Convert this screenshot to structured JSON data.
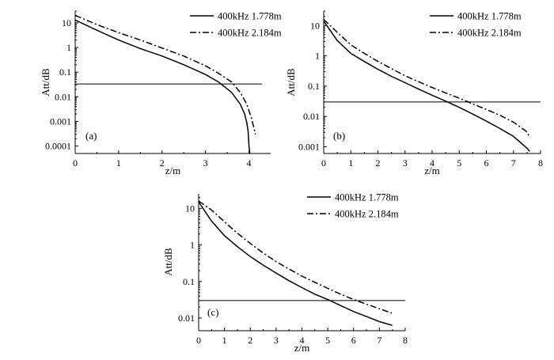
{
  "chart_data": [
    {
      "type": "line",
      "panel_label": "(a)",
      "xlabel": "z/m",
      "ylabel": "Att/dB",
      "xlim": [
        0,
        4.5
      ],
      "ylim": [
        5e-05,
        30
      ],
      "y_scale": "log",
      "x_ticks": [
        "0",
        "1",
        "2",
        "3",
        "4"
      ],
      "y_ticks": [
        "0.0001",
        "0.001",
        "0.01",
        "0.1",
        "1",
        "10"
      ],
      "legend_position": "top-right",
      "reference_line": {
        "y": 0.033,
        "x_range": [
          0,
          4.3
        ]
      },
      "series": [
        {
          "name": "400kHz 1.778m",
          "style": "solid",
          "x": [
            0,
            0.5,
            1.0,
            1.5,
            2.0,
            2.5,
            3.0,
            3.3,
            3.6,
            3.8,
            3.9,
            3.95,
            3.98,
            4.0,
            4.02
          ],
          "y": [
            13,
            5.0,
            2.0,
            0.9,
            0.45,
            0.2,
            0.08,
            0.04,
            0.015,
            0.005,
            0.002,
            0.0009,
            0.0004,
            0.0001,
            4e-05
          ]
        },
        {
          "name": "400kHz 2.184m",
          "style": "dashdot",
          "x": [
            0,
            0.5,
            1.0,
            1.5,
            2.0,
            2.5,
            3.0,
            3.3,
            3.6,
            3.8,
            3.95,
            4.05,
            4.1,
            4.15
          ],
          "y": [
            20,
            8.5,
            4.0,
            2.0,
            0.95,
            0.45,
            0.18,
            0.09,
            0.04,
            0.015,
            0.005,
            0.0015,
            0.0007,
            0.0003
          ]
        }
      ]
    },
    {
      "type": "line",
      "panel_label": "(b)",
      "xlabel": "z/m",
      "ylabel": "Att/dB",
      "xlim": [
        0,
        8
      ],
      "ylim": [
        0.0006,
        30
      ],
      "y_scale": "log",
      "x_ticks": [
        "0",
        "1",
        "2",
        "3",
        "4",
        "5",
        "6",
        "7",
        "8"
      ],
      "y_ticks": [
        "0.001",
        "0.01",
        "0.1",
        "1",
        "10"
      ],
      "legend_position": "top-right",
      "reference_line": {
        "y": 0.03,
        "x_range": [
          0,
          8
        ]
      },
      "series": [
        {
          "name": "400kHz 1.778m",
          "style": "solid",
          "x": [
            0,
            0.5,
            1,
            1.5,
            2,
            2.5,
            3,
            3.5,
            4,
            4.5,
            5,
            5.5,
            6,
            6.5,
            7,
            7.5,
            7.6
          ],
          "y": [
            14,
            3.2,
            1.2,
            0.65,
            0.36,
            0.21,
            0.13,
            0.08,
            0.05,
            0.032,
            0.02,
            0.012,
            0.007,
            0.004,
            0.0022,
            0.0009,
            0.0007
          ]
        },
        {
          "name": "400kHz 2.184m",
          "style": "dashdot",
          "x": [
            0,
            0.5,
            1,
            1.5,
            2,
            2.5,
            3,
            3.5,
            4,
            4.5,
            5,
            5.5,
            6,
            6.5,
            7,
            7.5,
            7.6
          ],
          "y": [
            16,
            6.0,
            2.3,
            1.2,
            0.65,
            0.38,
            0.22,
            0.14,
            0.09,
            0.06,
            0.04,
            0.026,
            0.017,
            0.011,
            0.0065,
            0.0031,
            0.002
          ]
        }
      ]
    },
    {
      "type": "line",
      "panel_label": "(c)",
      "xlabel": "z/m",
      "ylabel": "Att/dB",
      "xlim": [
        0,
        8
      ],
      "ylim": [
        0.0045,
        25
      ],
      "y_scale": "log",
      "x_ticks": [
        "0",
        "1",
        "2",
        "3",
        "4",
        "5",
        "6",
        "7",
        "8"
      ],
      "y_ticks": [
        "0.01",
        "0.1",
        "1",
        "10"
      ],
      "legend_position": "top-right",
      "reference_line": {
        "y": 0.03,
        "x_range": [
          0,
          8
        ]
      },
      "series": [
        {
          "name": "400kHz 1.778m",
          "style": "solid",
          "x": [
            0,
            0.5,
            1,
            1.5,
            2,
            2.5,
            3,
            3.5,
            4,
            4.5,
            5,
            5.5,
            6,
            6.5,
            7,
            7.5
          ],
          "y": [
            15,
            4.5,
            1.8,
            0.9,
            0.48,
            0.28,
            0.17,
            0.105,
            0.068,
            0.045,
            0.032,
            0.022,
            0.015,
            0.011,
            0.008,
            0.0063
          ]
        },
        {
          "name": "400kHz 2.184m",
          "style": "dashdot",
          "x": [
            0,
            0.5,
            1,
            1.5,
            2,
            2.5,
            3,
            3.5,
            4,
            4.5,
            5,
            5.5,
            6,
            6.5,
            7,
            7.5
          ],
          "y": [
            16,
            9.0,
            4.3,
            2.1,
            1.1,
            0.6,
            0.35,
            0.22,
            0.14,
            0.095,
            0.065,
            0.045,
            0.032,
            0.024,
            0.018,
            0.0135
          ]
        }
      ]
    }
  ]
}
